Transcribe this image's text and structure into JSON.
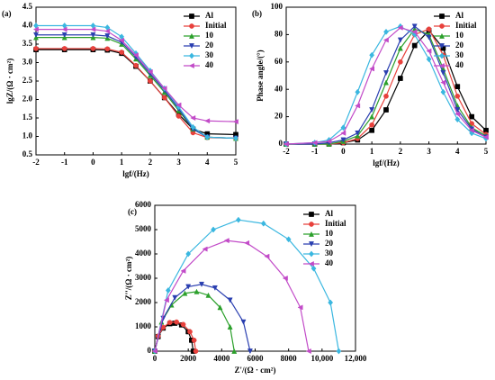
{
  "chart_data": [
    {
      "type": "line",
      "title": "(a)",
      "xlabel": "lgf/(Hz)",
      "ylabel": "lgZ/(Ω · cm²)",
      "x": [
        -2,
        -1,
        0,
        0.5,
        1,
        1.5,
        2,
        2.5,
        3,
        3.5,
        4,
        5
      ],
      "xlim": [
        -2,
        5
      ],
      "xticks": [
        -2,
        -1,
        0,
        1,
        2,
        3,
        4,
        5
      ],
      "ylim": [
        0.5,
        4.5
      ],
      "yticks": [
        0.5,
        {
          "value": 1,
          "label": "1.0"
        },
        1.5,
        {
          "value": 2,
          "label": "2.0"
        },
        2.5,
        {
          "value": 3,
          "label": "3.0"
        },
        3.5,
        {
          "value": 4,
          "label": "4.0"
        },
        4.5
      ],
      "legend": "upper right",
      "series": [
        {
          "name": "Al",
          "color": "#000000",
          "marker": "square",
          "values": [
            3.35,
            3.35,
            3.35,
            3.34,
            3.25,
            2.9,
            2.5,
            2.05,
            1.6,
            1.2,
            1.07,
            1.05
          ]
        },
        {
          "name": "Initial",
          "color": "#e8413c",
          "marker": "circle",
          "values": [
            3.38,
            3.38,
            3.38,
            3.37,
            3.28,
            2.92,
            2.5,
            2.05,
            1.55,
            1.1,
            0.97,
            0.95
          ]
        },
        {
          "name": "10",
          "color": "#2ca02c",
          "marker": "triangle-up",
          "values": [
            3.68,
            3.68,
            3.68,
            3.66,
            3.5,
            3.1,
            2.65,
            2.2,
            1.7,
            1.2,
            0.98,
            0.95
          ]
        },
        {
          "name": "20",
          "color": "#2a3fb0",
          "marker": "triangle-down",
          "values": [
            3.75,
            3.75,
            3.75,
            3.72,
            3.55,
            3.15,
            2.7,
            2.25,
            1.75,
            1.2,
            0.98,
            0.95
          ]
        },
        {
          "name": "30",
          "color": "#3ab7e0",
          "marker": "diamond",
          "values": [
            4.0,
            4.0,
            4.0,
            3.95,
            3.7,
            3.25,
            2.78,
            2.3,
            1.8,
            1.25,
            0.98,
            0.95
          ]
        },
        {
          "name": "40",
          "color": "#c24bc8",
          "marker": "triangle-left",
          "values": [
            3.9,
            3.9,
            3.9,
            3.85,
            3.6,
            3.2,
            2.75,
            2.3,
            1.85,
            1.5,
            1.42,
            1.4
          ]
        }
      ]
    },
    {
      "type": "line",
      "title": "(b)",
      "xlabel": "lgf/(Hz)",
      "ylabel": "Phase angle/(°)",
      "x": [
        -2,
        -1,
        -0.5,
        0,
        0.5,
        1,
        1.5,
        2,
        2.5,
        3,
        3.5,
        4,
        4.5,
        5
      ],
      "xlim": [
        -2,
        5
      ],
      "xticks": [
        -2,
        -1,
        0,
        1,
        2,
        3,
        4,
        5
      ],
      "ylim": [
        0,
        100
      ],
      "yticks": [
        0,
        20,
        40,
        60,
        80,
        100
      ],
      "legend": "upper right",
      "series": [
        {
          "name": "Al",
          "color": "#000000",
          "marker": "square",
          "values": [
            0,
            0,
            0,
            1,
            3,
            10,
            25,
            48,
            72,
            83,
            70,
            42,
            20,
            10
          ]
        },
        {
          "name": "Initial",
          "color": "#e8413c",
          "marker": "circle",
          "values": [
            0,
            0,
            0,
            1,
            4,
            14,
            35,
            60,
            80,
            84,
            65,
            35,
            15,
            7
          ]
        },
        {
          "name": "10",
          "color": "#2ca02c",
          "marker": "triangle-up",
          "values": [
            0,
            0,
            0,
            2,
            6,
            20,
            45,
            70,
            84,
            80,
            55,
            28,
            12,
            6
          ]
        },
        {
          "name": "20",
          "color": "#2a3fb0",
          "marker": "triangle-down",
          "values": [
            0,
            0,
            1,
            3,
            8,
            25,
            52,
            76,
            86,
            78,
            52,
            25,
            11,
            5
          ]
        },
        {
          "name": "30",
          "color": "#3ab7e0",
          "marker": "diamond",
          "values": [
            0,
            1,
            3,
            12,
            38,
            65,
            82,
            86,
            80,
            62,
            38,
            18,
            8,
            4
          ]
        },
        {
          "name": "40",
          "color": "#c24bc8",
          "marker": "triangle-left",
          "values": [
            0,
            1,
            2,
            8,
            28,
            55,
            76,
            85,
            82,
            68,
            45,
            22,
            10,
            5
          ]
        }
      ]
    },
    {
      "type": "line",
      "title": "(c)",
      "xlabel": "Z'/(Ω · cm²)",
      "ylabel": "Z''/(Ω · cm²)",
      "xlim": [
        0,
        12000
      ],
      "xticks": [
        0,
        2000,
        4000,
        6000,
        8000,
        {
          "value": 10000,
          "label": "10,000"
        },
        {
          "value": 12000,
          "label": "12,000"
        }
      ],
      "ylim": [
        0,
        6000
      ],
      "yticks": [
        0,
        1000,
        2000,
        3000,
        4000,
        5000,
        6000
      ],
      "legend": "upper right",
      "series": [
        {
          "name": "Al",
          "color": "#000000",
          "marker": "square",
          "x": [
            0,
            200,
            500,
            900,
            1200,
            1600,
            2000,
            2200,
            2300
          ],
          "values": [
            0,
            600,
            950,
            1130,
            1150,
            1080,
            800,
            450,
            0
          ]
        },
        {
          "name": "Initial",
          "color": "#e8413c",
          "marker": "circle",
          "x": [
            0,
            200,
            500,
            900,
            1300,
            1700,
            2100,
            2350,
            2450
          ],
          "values": [
            0,
            620,
            980,
            1180,
            1200,
            1100,
            800,
            450,
            0
          ]
        },
        {
          "name": "10",
          "color": "#2ca02c",
          "marker": "triangle-up",
          "x": [
            0,
            400,
            1000,
            1800,
            2500,
            3200,
            3900,
            4500,
            4750
          ],
          "values": [
            0,
            1200,
            1900,
            2380,
            2450,
            2300,
            1800,
            1000,
            0
          ]
        },
        {
          "name": "20",
          "color": "#2a3fb0",
          "marker": "triangle-down",
          "x": [
            0,
            500,
            1200,
            2000,
            2800,
            3600,
            4500,
            5300,
            5700
          ],
          "values": [
            0,
            1350,
            2200,
            2650,
            2750,
            2600,
            2100,
            1200,
            0
          ]
        },
        {
          "name": "30",
          "color": "#3ab7e0",
          "marker": "diamond",
          "x": [
            0,
            800,
            2000,
            3500,
            5000,
            6500,
            8000,
            9500,
            10500,
            11000
          ],
          "values": [
            0,
            2500,
            4000,
            5000,
            5400,
            5250,
            4600,
            3400,
            2000,
            0
          ]
        },
        {
          "name": "40",
          "color": "#c24bc8",
          "marker": "triangle-left",
          "x": [
            0,
            700,
            1700,
            3000,
            4300,
            5500,
            6700,
            7800,
            8700,
            9200
          ],
          "values": [
            0,
            2100,
            3300,
            4200,
            4550,
            4450,
            3900,
            3000,
            1800,
            0
          ]
        }
      ]
    }
  ]
}
